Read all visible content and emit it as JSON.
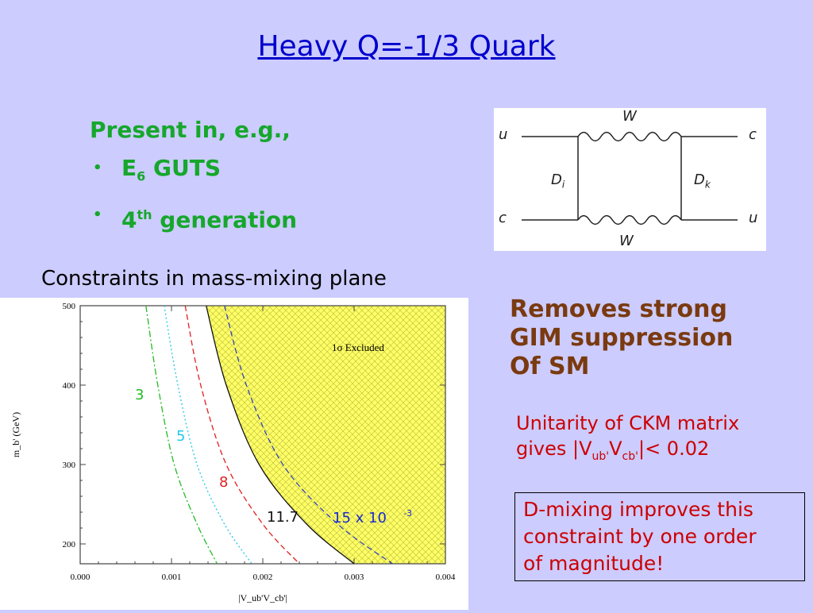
{
  "slide": {
    "title": "Heavy Q=-1/3 Quark",
    "present": {
      "intro": "Present in, e.g.,",
      "item1_base": "E",
      "item1_sub": "6",
      "item1_rest": " GUTS",
      "item2_base": "4",
      "item2_sup": "th",
      "item2_rest": " generation",
      "bullet": "•"
    },
    "diagram": {
      "labels": {
        "top_w": "W",
        "bottom_w": "W",
        "u_left": "u",
        "c_right": "c",
        "c_left": "c",
        "u_right": "u",
        "d_i": "D",
        "d_i_sub": "i",
        "d_k": "D",
        "d_k_sub": "k"
      }
    },
    "constraints_label": "Constraints in mass-mixing plane",
    "removes_text": [
      "Removes strong",
      "GIM suppression",
      "Of SM"
    ],
    "unitarity": {
      "line1": "Unitarity of CKM matrix",
      "prefix": "gives |V",
      "sub1": "ub'",
      "mid": "V",
      "sub2": "cb'",
      "suffix": "|< 0.02"
    },
    "dmixing": [
      "D-mixing improves this",
      "constraint by one order",
      "of magnitude!"
    ]
  },
  "chart_data": {
    "type": "line",
    "xlabel": "|V_ub'V_cb'|",
    "ylabel": "m_b' (GeV)",
    "xlim": [
      0,
      0.004
    ],
    "ylim": [
      175,
      500
    ],
    "x_ticks": [
      "0.000",
      "0.001",
      "0.002",
      "0.003",
      "0.004"
    ],
    "y_ticks": [
      "200",
      "300",
      "400",
      "500"
    ],
    "region_label": "1σ Excluded",
    "series": [
      {
        "name": "3",
        "style": "dashdot",
        "color": "#22bb22",
        "points": [
          [
            0.00072,
            500
          ],
          [
            0.00085,
            400
          ],
          [
            0.00103,
            300
          ],
          [
            0.00128,
            225
          ],
          [
            0.0015,
            175
          ]
        ]
      },
      {
        "name": "5",
        "style": "dotted",
        "color": "#22c8e8",
        "points": [
          [
            0.00092,
            500
          ],
          [
            0.00107,
            400
          ],
          [
            0.00128,
            300
          ],
          [
            0.00158,
            225
          ],
          [
            0.00188,
            175
          ]
        ]
      },
      {
        "name": "8",
        "style": "dashed",
        "color": "#e02020",
        "points": [
          [
            0.00115,
            500
          ],
          [
            0.00132,
            400
          ],
          [
            0.0016,
            300
          ],
          [
            0.002,
            225
          ],
          [
            0.0024,
            175
          ]
        ]
      },
      {
        "name": "11.7",
        "style": "solid",
        "color": "#111111",
        "points": [
          [
            0.00138,
            500
          ],
          [
            0.0016,
            400
          ],
          [
            0.00196,
            300
          ],
          [
            0.00248,
            225
          ],
          [
            0.003,
            175
          ]
        ]
      },
      {
        "name": "15 x 10",
        "style": "dashed",
        "color": "#3344bb",
        "points": [
          [
            0.00158,
            500
          ],
          [
            0.00182,
            400
          ],
          [
            0.00222,
            300
          ],
          [
            0.00282,
            225
          ],
          [
            0.00342,
            175
          ]
        ]
      }
    ],
    "series_label_colors": [
      "#22bb22",
      "#22c8e8",
      "#e02020",
      "#111111",
      "#1a2bcc"
    ],
    "series_label_exp": "-3",
    "region_color": "#ffff66"
  }
}
